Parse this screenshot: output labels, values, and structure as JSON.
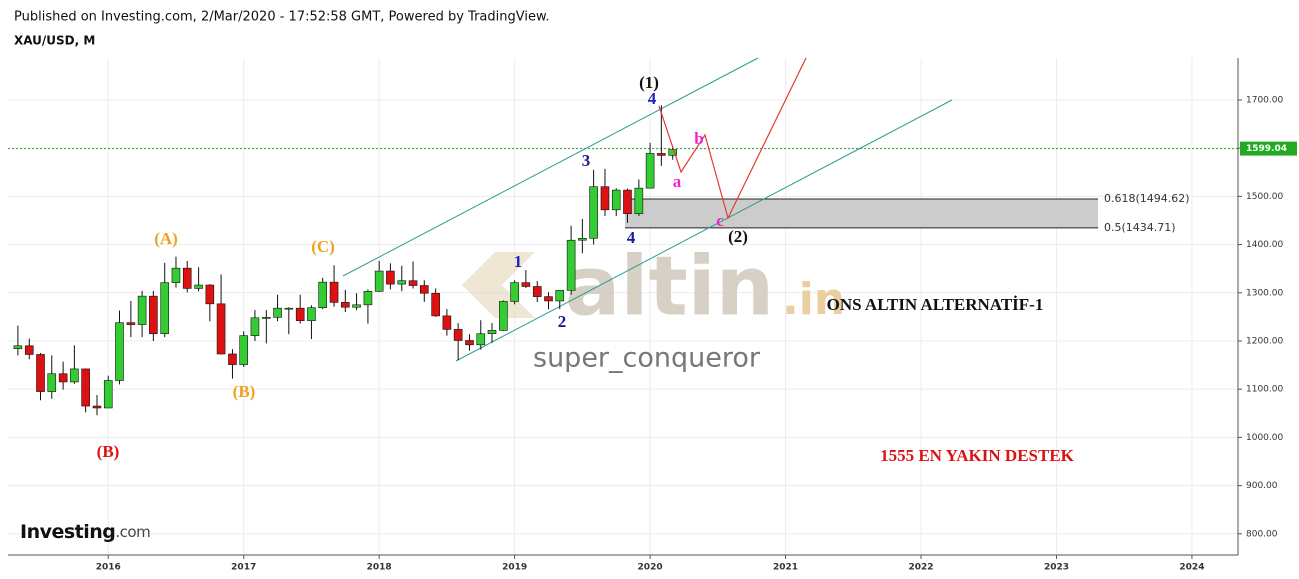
{
  "chart_data": {
    "type": "candlestick",
    "title": "XAU/USD, M",
    "subtitle": "Published on Investing.com, 2/Mar/2020 - 17:52:58 GMT, Powered by TradingView.",
    "x": [
      2015.333,
      2015.417,
      2015.5,
      2015.583,
      2015.667,
      2015.75,
      2015.833,
      2015.917,
      2016,
      2016.083,
      2016.167,
      2016.25,
      2016.333,
      2016.417,
      2016.5,
      2016.583,
      2016.667,
      2016.75,
      2016.833,
      2016.917,
      2017,
      2017.083,
      2017.167,
      2017.25,
      2017.333,
      2017.417,
      2017.5,
      2017.583,
      2017.667,
      2017.75,
      2017.833,
      2017.917,
      2018,
      2018.083,
      2018.167,
      2018.25,
      2018.333,
      2018.417,
      2018.5,
      2018.583,
      2018.667,
      2018.75,
      2018.833,
      2018.917,
      2019,
      2019.083,
      2019.167,
      2019.25,
      2019.333,
      2019.417,
      2019.5,
      2019.583,
      2019.667,
      2019.75,
      2019.833,
      2019.917,
      2020,
      2020.083,
      2020.167
    ],
    "open": [
      1184,
      1190,
      1172,
      1095,
      1132,
      1115,
      1142,
      1065,
      1061,
      1118,
      1238,
      1234,
      1293,
      1215,
      1321,
      1351,
      1309,
      1316,
      1277,
      1173,
      1151,
      1211,
      1248,
      1249,
      1268,
      1268,
      1242,
      1269,
      1322,
      1280,
      1270,
      1275,
      1303,
      1345,
      1318,
      1325,
      1315,
      1299,
      1252,
      1224,
      1201,
      1192,
      1215,
      1222,
      1282,
      1321,
      1313,
      1292,
      1283,
      1305,
      1409,
      1413,
      1520,
      1472,
      1513,
      1464,
      1517,
      1589,
      1585
    ],
    "high": [
      1232,
      1205,
      1175,
      1170,
      1157,
      1191,
      1143,
      1088,
      1128,
      1263,
      1283,
      1304,
      1304,
      1362,
      1375,
      1366,
      1353,
      1318,
      1338,
      1183,
      1220,
      1264,
      1264,
      1296,
      1270,
      1296,
      1274,
      1331,
      1357,
      1306,
      1299,
      1307,
      1366,
      1361,
      1356,
      1365,
      1326,
      1309,
      1266,
      1237,
      1214,
      1243,
      1237,
      1284,
      1326,
      1347,
      1324,
      1301,
      1306,
      1439,
      1453,
      1555,
      1557,
      1517,
      1516,
      1535,
      1611,
      1689,
      1604
    ],
    "low": [
      1170,
      1162,
      1077,
      1080,
      1099,
      1111,
      1052,
      1046,
      1062,
      1110,
      1208,
      1208,
      1200,
      1208,
      1311,
      1301,
      1303,
      1241,
      1172,
      1122,
      1146,
      1200,
      1195,
      1241,
      1214,
      1236,
      1204,
      1266,
      1271,
      1260,
      1264,
      1236,
      1302,
      1307,
      1303,
      1309,
      1281,
      1250,
      1211,
      1160,
      1180,
      1182,
      1196,
      1221,
      1276,
      1310,
      1281,
      1266,
      1266,
      1296,
      1382,
      1400,
      1459,
      1459,
      1445,
      1459,
      1517,
      1563,
      1576
    ],
    "close": [
      1190,
      1172,
      1095,
      1132,
      1115,
      1142,
      1065,
      1061,
      1118,
      1238,
      1234,
      1293,
      1215,
      1321,
      1351,
      1309,
      1316,
      1277,
      1173,
      1151,
      1211,
      1248,
      1249,
      1268,
      1268,
      1242,
      1269,
      1322,
      1280,
      1270,
      1275,
      1303,
      1345,
      1318,
      1325,
      1315,
      1299,
      1252,
      1224,
      1201,
      1192,
      1215,
      1222,
      1282,
      1321,
      1313,
      1292,
      1283,
      1305,
      1409,
      1413,
      1520,
      1472,
      1513,
      1464,
      1517,
      1589,
      1585,
      1597
    ],
    "up_color": "#33cc33",
    "down_color": "#dd1111",
    "xlim": [
      2015.26,
      2024.34
    ],
    "xticks": [
      2016,
      2017,
      2018,
      2019,
      2020,
      2021,
      2022,
      2023,
      2024
    ],
    "ylim": [
      756,
      1787
    ],
    "yticks": [
      {
        "value": 800,
        "label": "800.00"
      },
      {
        "value": 900,
        "label": "900.00"
      },
      {
        "value": 1000,
        "label": "1000.00"
      },
      {
        "value": 1100,
        "label": "1100.00"
      },
      {
        "value": 1200,
        "label": "1200.00"
      },
      {
        "value": 1300,
        "label": "1300.00"
      },
      {
        "value": 1400,
        "label": "1400.00"
      },
      {
        "value": 1500,
        "label": "1500.00"
      },
      {
        "value": 1600,
        "label": "1600.00"
      },
      {
        "value": 1700,
        "label": "1700.00"
      }
    ],
    "grid": true,
    "price_line": 1599.04,
    "price_line_color": "#22aa22",
    "fib_levels": [
      {
        "value": 1494.62,
        "label": "0.618(1494.62)"
      },
      {
        "value": 1434.71,
        "label": "0.5(1434.71)"
      }
    ],
    "annotations": [
      "(1)",
      "4",
      "3",
      "4",
      "1",
      "2",
      "a",
      "b",
      "c",
      "(2)",
      "(A)",
      "(B)",
      "(C)",
      "(B)",
      "ONS ALTIN ALTERNATİF-1",
      "1555 EN YAKIN DESTEK",
      "altin",
      ".in",
      "super_conqueror",
      "Investing",
      ".com"
    ]
  }
}
